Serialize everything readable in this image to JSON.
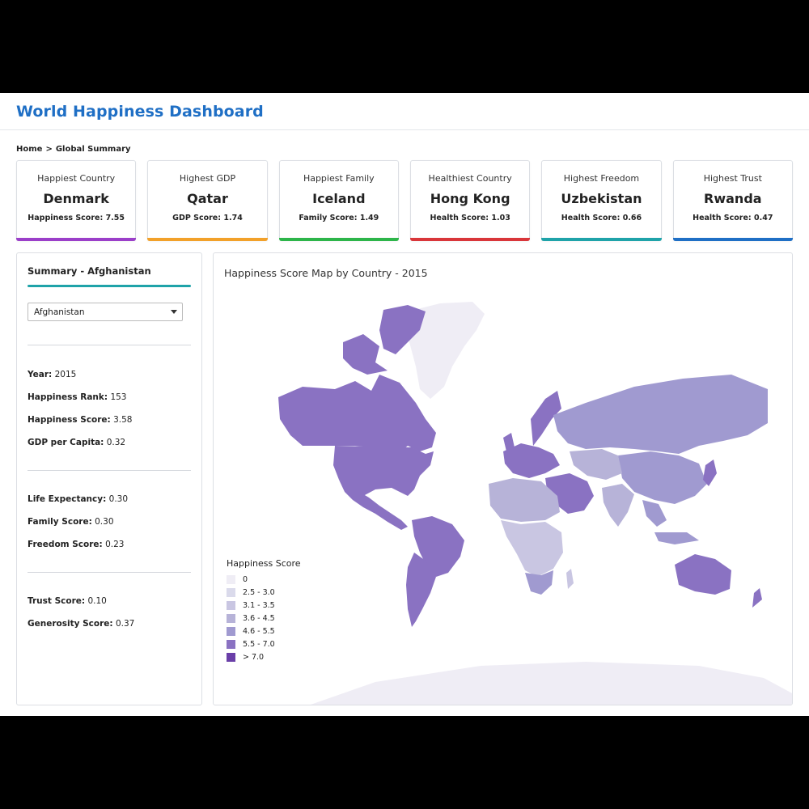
{
  "app": {
    "title": "World Happiness Dashboard"
  },
  "breadcrumb": {
    "home": "Home",
    "separator": ">",
    "current": "Global Summary"
  },
  "cards": [
    {
      "label": "Happiest Country",
      "value": "Denmark",
      "sub": "Happiness Score: 7.55",
      "color": "#9b3fc9"
    },
    {
      "label": "Highest GDP",
      "value": "Qatar",
      "sub": "GDP Score: 1.74",
      "color": "#f2a12a"
    },
    {
      "label": "Happiest Family",
      "value": "Iceland",
      "sub": "Family Score: 1.49",
      "color": "#2db54a"
    },
    {
      "label": "Healthiest Country",
      "value": "Hong Kong",
      "sub": "Health Score: 1.03",
      "color": "#d9363a"
    },
    {
      "label": "Highest Freedom",
      "value": "Uzbekistan",
      "sub": "Health Score: 0.66",
      "color": "#1fa3a9"
    },
    {
      "label": "Highest Trust",
      "value": "Rwanda",
      "sub": "Health Score: 0.47",
      "color": "#1f6fc5"
    }
  ],
  "summary": {
    "title": "Summary - Afghanistan",
    "selected_country": "Afghanistan",
    "year": {
      "label": "Year:",
      "value": "2015"
    },
    "rank": {
      "label": "Happiness Rank:",
      "value": "153"
    },
    "score": {
      "label": "Happiness Score:",
      "value": "3.58"
    },
    "gdp": {
      "label": "GDP per Capita:",
      "value": "0.32"
    },
    "life": {
      "label": "Life Expectancy:",
      "value": "0.30"
    },
    "family": {
      "label": "Family Score:",
      "value": "0.30"
    },
    "freedom": {
      "label": "Freedom Score:",
      "value": "0.23"
    },
    "trust": {
      "label": "Trust Score:",
      "value": "0.10"
    },
    "generosity": {
      "label": "Generosity Score:",
      "value": "0.37"
    }
  },
  "map": {
    "title": "Happiness Score Map by Country - 2015",
    "legend_title": "Happiness Score",
    "legend": [
      {
        "label": "0",
        "color": "#efedf5"
      },
      {
        "label": "2.5 - 3.0",
        "color": "#dadaeb"
      },
      {
        "label": "3.1 - 3.5",
        "color": "#c9c6e2"
      },
      {
        "label": "3.6 - 4.5",
        "color": "#b7b3d8"
      },
      {
        "label": "4.6 - 5.5",
        "color": "#a09ad0"
      },
      {
        "label": "5.5 - 7.0",
        "color": "#8a72c2"
      },
      {
        "label": "> 7.0",
        "color": "#6a3fa8"
      }
    ]
  }
}
